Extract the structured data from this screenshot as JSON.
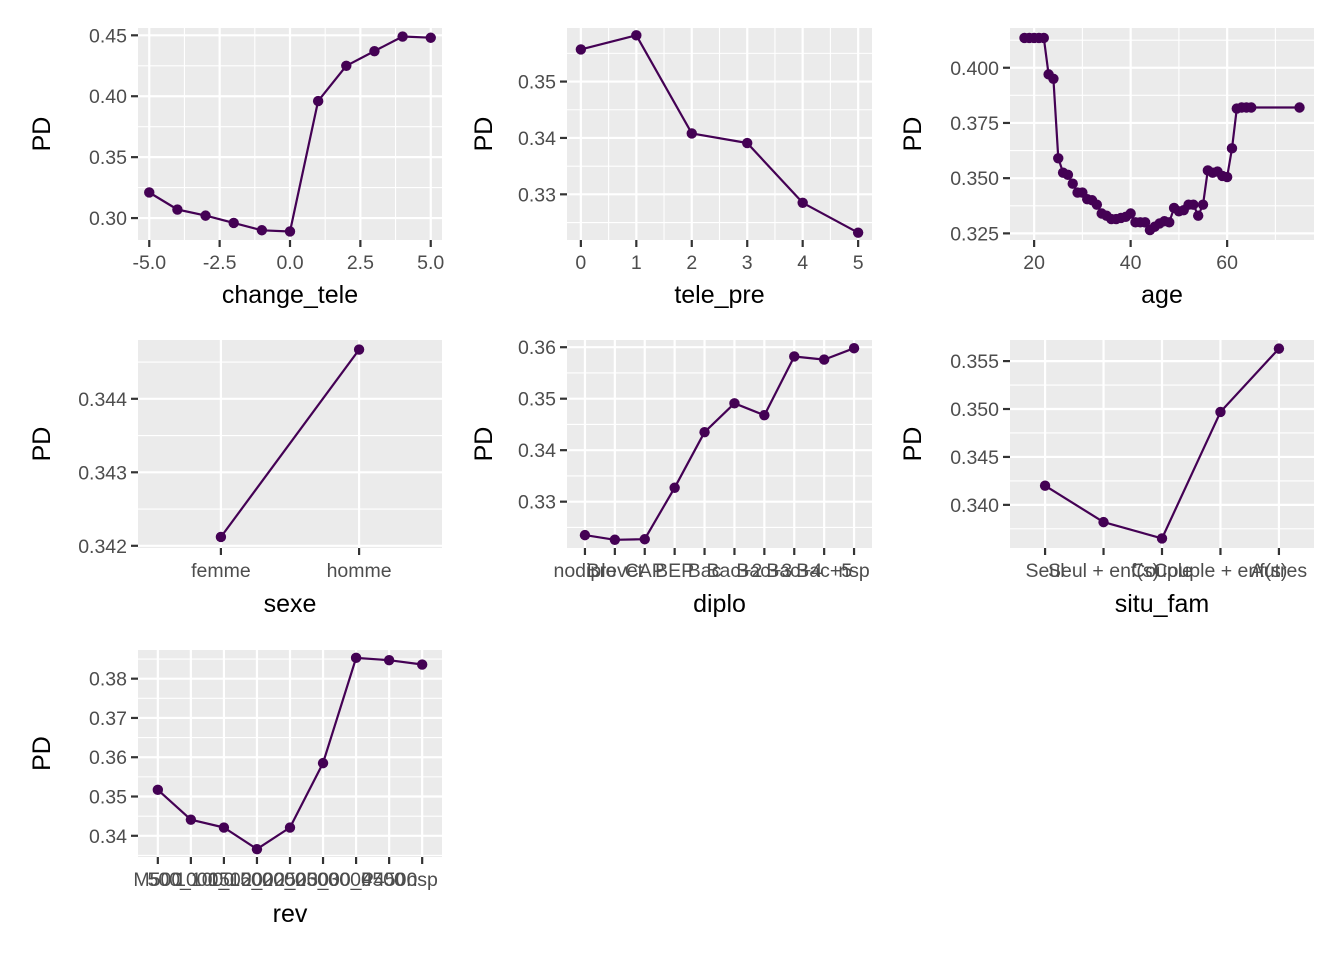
{
  "colors": {
    "series": "#440154",
    "panel": "#ebebeb",
    "grid": "#ffffff",
    "tick_text": "#4d4d4d"
  },
  "chart_data": [
    {
      "type": "line",
      "xlabel": "change_tele",
      "ylabel": "PD",
      "x": [
        -5,
        -4,
        -3,
        -2,
        -1,
        0,
        1,
        2,
        3,
        4,
        5
      ],
      "values": [
        0.321,
        0.307,
        0.302,
        0.296,
        0.29,
        0.289,
        0.396,
        0.425,
        0.437,
        0.449,
        0.448
      ],
      "xlim": [
        -5.4,
        5.4
      ],
      "ylim": [
        0.282,
        0.456
      ],
      "xticks": [
        -5,
        -2.5,
        0,
        2.5,
        5
      ],
      "xtick_labels": [
        "-5.0",
        "-2.5",
        "0.0",
        "2.5",
        "5.0"
      ],
      "yticks": [
        0.3,
        0.35,
        0.4,
        0.45
      ],
      "ytick_labels": [
        "0.30",
        "0.35",
        "0.40",
        "0.45"
      ]
    },
    {
      "type": "line",
      "xlabel": "tele_pre",
      "ylabel": "PD",
      "x": [
        0,
        1,
        2,
        3,
        4,
        5
      ],
      "values": [
        0.3557,
        0.3582,
        0.3408,
        0.3391,
        0.3285,
        0.3232
      ],
      "xlim": [
        -0.25,
        5.25
      ],
      "ylim": [
        0.3219,
        0.3595
      ],
      "xticks": [
        0,
        1,
        2,
        3,
        4,
        5
      ],
      "xtick_labels": [
        "0",
        "1",
        "2",
        "3",
        "4",
        "5"
      ],
      "yticks": [
        0.33,
        0.34,
        0.35
      ],
      "ytick_labels": [
        "0.33",
        "0.34",
        "0.35"
      ]
    },
    {
      "type": "line",
      "xlabel": "age",
      "ylabel": "PD",
      "x": [
        18,
        19,
        20,
        21,
        22,
        23,
        24,
        25,
        26,
        27,
        28,
        29,
        30,
        31,
        32,
        33,
        34,
        35,
        36,
        37,
        38,
        39,
        40,
        41,
        42,
        43,
        44,
        45,
        46,
        47,
        48,
        49,
        50,
        51,
        52,
        53,
        54,
        55,
        56,
        57,
        58,
        59,
        60,
        61,
        62,
        63,
        64,
        65,
        75
      ],
      "values": [
        0.4135,
        0.4135,
        0.4135,
        0.4135,
        0.4135,
        0.397,
        0.395,
        0.359,
        0.3525,
        0.3515,
        0.3475,
        0.3435,
        0.3435,
        0.3405,
        0.34,
        0.338,
        0.334,
        0.333,
        0.3315,
        0.3315,
        0.332,
        0.3325,
        0.334,
        0.33,
        0.33,
        0.33,
        0.3265,
        0.328,
        0.3295,
        0.3305,
        0.33,
        0.3365,
        0.335,
        0.3355,
        0.338,
        0.338,
        0.333,
        0.338,
        0.3535,
        0.3525,
        0.353,
        0.351,
        0.3505,
        0.3635,
        0.3815,
        0.382,
        0.382,
        0.382,
        0.382
      ],
      "xlim": [
        15,
        78
      ],
      "ylim": [
        0.322,
        0.418
      ],
      "xticks": [
        20,
        40,
        60
      ],
      "xtick_labels": [
        "20",
        "40",
        "60"
      ],
      "yticks": [
        0.325,
        0.35,
        0.375,
        0.4
      ],
      "ytick_labels": [
        "0.325",
        "0.350",
        "0.375",
        "0.400"
      ]
    },
    {
      "type": "line",
      "xlabel": "sexe",
      "ylabel": "PD",
      "categories": [
        "femme",
        "homme"
      ],
      "values": [
        0.34212,
        0.34467
      ],
      "ylim": [
        0.34197,
        0.3448
      ],
      "yticks": [
        0.342,
        0.343,
        0.344
      ],
      "ytick_labels": [
        "0.342",
        "0.343",
        "0.344"
      ]
    },
    {
      "type": "line",
      "xlabel": "diplo",
      "ylabel": "PD",
      "categories": [
        "nodiplo",
        "Brevet",
        "CAP",
        "BEP",
        "Bac",
        "Bac+2",
        "Bac+3",
        "Bac+4",
        "Bac+5",
        "nsp"
      ],
      "values": [
        0.3235,
        0.3226,
        0.3227,
        0.3327,
        0.3435,
        0.3491,
        0.3468,
        0.3582,
        0.3576,
        0.3598
      ],
      "ylim": [
        0.321,
        0.3614
      ],
      "yticks": [
        0.33,
        0.34,
        0.35,
        0.36
      ],
      "ytick_labels": [
        "0.33",
        "0.34",
        "0.35",
        "0.36"
      ]
    },
    {
      "type": "line",
      "xlabel": "situ_fam",
      "ylabel": "PD",
      "categories": [
        "Seul",
        "Seul + enf(s)",
        "Couple",
        "Couple + enf(s)",
        "Autres"
      ],
      "values": [
        0.342,
        0.3382,
        0.3365,
        0.3497,
        0.3563
      ],
      "ylim": [
        0.3355,
        0.3572
      ],
      "yticks": [
        0.34,
        0.345,
        0.35,
        0.355
      ],
      "ytick_labels": [
        "0.340",
        "0.345",
        "0.350",
        "0.355"
      ]
    },
    {
      "type": "line",
      "xlabel": "rev",
      "ylabel": "PD",
      "categories": [
        "M500",
        "500_1000",
        "1000_1500",
        "1500_2000",
        "2000_2500",
        "2500_3000",
        "3000_4500",
        "P4500",
        "nsp"
      ],
      "values": [
        0.3517,
        0.3441,
        0.3421,
        0.3366,
        0.3421,
        0.3585,
        0.3853,
        0.3847,
        0.3836
      ],
      "ylim": [
        0.3346,
        0.3873
      ],
      "yticks": [
        0.34,
        0.35,
        0.36,
        0.37,
        0.38
      ],
      "ytick_labels": [
        "0.34",
        "0.35",
        "0.36",
        "0.37",
        "0.38"
      ]
    }
  ]
}
